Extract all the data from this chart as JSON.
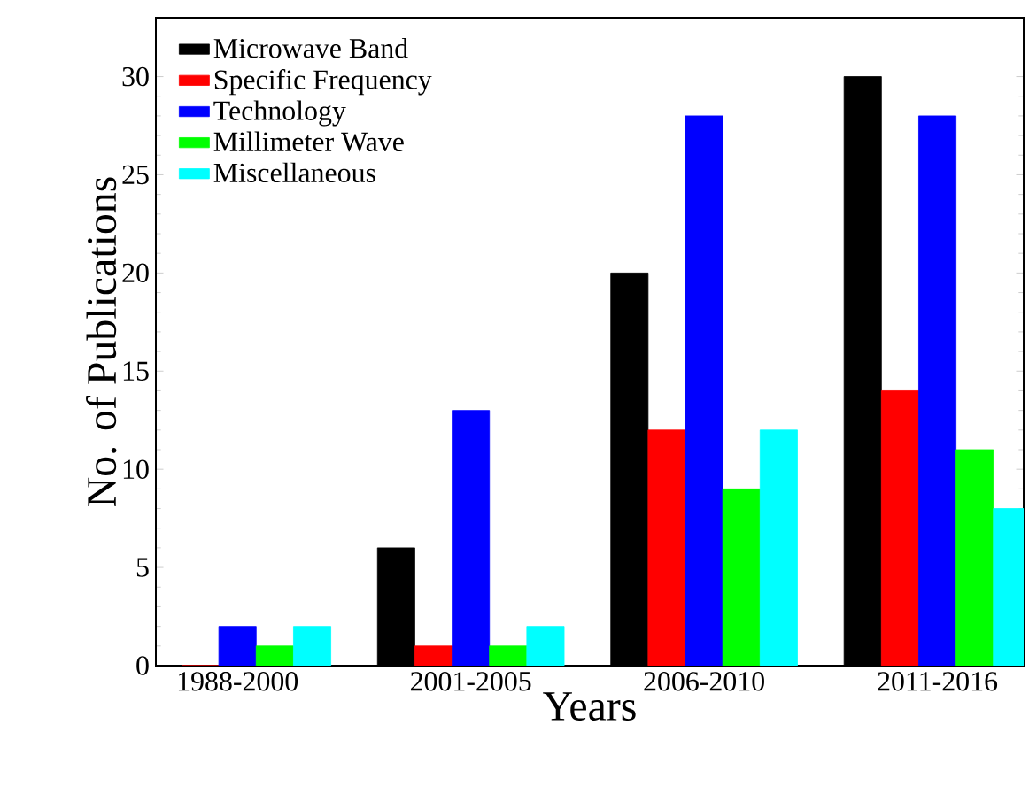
{
  "chart_data": {
    "type": "bar",
    "xlabel": "Years",
    "ylabel": "No. of Publications",
    "categories": [
      "1988-2000",
      "2001-2005",
      "2006-2010",
      "2011-2016"
    ],
    "series": [
      {
        "name": "Microwave Band",
        "color": "#000000",
        "values": [
          0,
          6,
          20,
          30
        ]
      },
      {
        "name": "Specific Frequency",
        "color": "#ff0000",
        "values": [
          0,
          1,
          12,
          14
        ]
      },
      {
        "name": "Technology",
        "color": "#0000ff",
        "values": [
          2,
          13,
          28,
          28
        ]
      },
      {
        "name": "Millimeter Wave",
        "color": "#00ff00",
        "values": [
          1,
          1,
          9,
          11
        ]
      },
      {
        "name": "Miscellaneous",
        "color": "#00ffff",
        "values": [
          2,
          2,
          12,
          8
        ]
      }
    ],
    "ylim": [
      0,
      33
    ],
    "yticks": [
      0,
      5,
      10,
      15,
      20,
      25,
      30
    ],
    "legend": "top left"
  }
}
